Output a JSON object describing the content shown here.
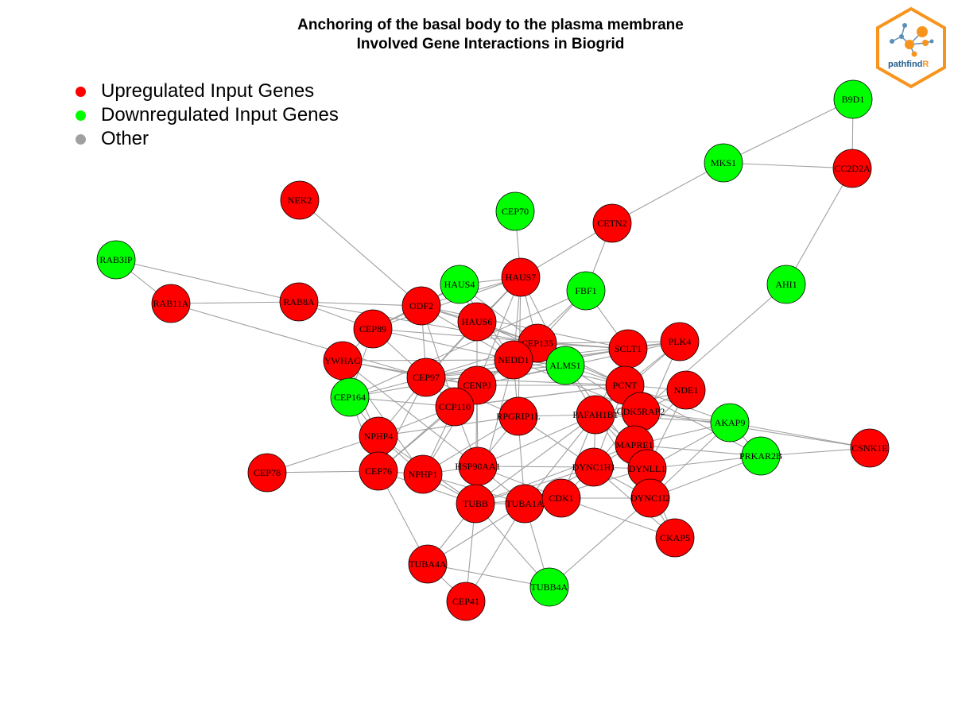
{
  "title": {
    "line1": "Anchoring of the basal body to the plasma membrane",
    "line2": "Involved Gene Interactions in Biogrid"
  },
  "legend": [
    {
      "label": "Upregulated Input Genes",
      "color": "#ff0000"
    },
    {
      "label": "Downregulated Input Genes",
      "color": "#00ff00"
    },
    {
      "label": "Other",
      "color": "#a0a0a0"
    }
  ],
  "logo": {
    "text_main": "pathfind",
    "text_accent": "R",
    "border_color": "#f7941d",
    "accent_color": "#f7941d",
    "text_color": "#1f5c8b"
  },
  "colors": {
    "up": "#ff0000",
    "down": "#00ff00",
    "edge": "#a0a0a0"
  },
  "genes": [
    {
      "id": "B9D1",
      "group": "down"
    },
    {
      "id": "MKS1",
      "group": "down"
    },
    {
      "id": "CC2D2A",
      "group": "up"
    },
    {
      "id": "NEK2",
      "group": "up"
    },
    {
      "id": "CEP70",
      "group": "down"
    },
    {
      "id": "CETN2",
      "group": "up"
    },
    {
      "id": "RAB3IP",
      "group": "down"
    },
    {
      "id": "HAUS7",
      "group": "up"
    },
    {
      "id": "HAUS4",
      "group": "down"
    },
    {
      "id": "FBF1",
      "group": "down"
    },
    {
      "id": "AHI1",
      "group": "down"
    },
    {
      "id": "RAB11A",
      "group": "up"
    },
    {
      "id": "RAB8A",
      "group": "up"
    },
    {
      "id": "ODF2",
      "group": "up"
    },
    {
      "id": "HAUS6",
      "group": "up"
    },
    {
      "id": "CEP89",
      "group": "up"
    },
    {
      "id": "CEP135",
      "group": "up"
    },
    {
      "id": "SCLT1",
      "group": "up"
    },
    {
      "id": "PLK4",
      "group": "up"
    },
    {
      "id": "YWHAG",
      "group": "up"
    },
    {
      "id": "NEDD1",
      "group": "up"
    },
    {
      "id": "ALMS1",
      "group": "down"
    },
    {
      "id": "CEP97",
      "group": "up"
    },
    {
      "id": "CENPJ",
      "group": "up"
    },
    {
      "id": "PCNT",
      "group": "up"
    },
    {
      "id": "NDE1",
      "group": "up"
    },
    {
      "id": "CEP164",
      "group": "down"
    },
    {
      "id": "CCP110",
      "group": "up"
    },
    {
      "id": "CDK5RAP2",
      "group": "up"
    },
    {
      "id": "AKAP9",
      "group": "down"
    },
    {
      "id": "RPGRIP1L",
      "group": "up"
    },
    {
      "id": "PAFAH1B1",
      "group": "up"
    },
    {
      "id": "NPHP4",
      "group": "up"
    },
    {
      "id": "MAPRE1",
      "group": "up"
    },
    {
      "id": "CSNK1E",
      "group": "up"
    },
    {
      "id": "PRKAR2B",
      "group": "down"
    },
    {
      "id": "CEP78",
      "group": "up"
    },
    {
      "id": "CEP76",
      "group": "up"
    },
    {
      "id": "NPHP1",
      "group": "up"
    },
    {
      "id": "HSP90AA1",
      "group": "up"
    },
    {
      "id": "DYNC1H1",
      "group": "up"
    },
    {
      "id": "DYNLL1",
      "group": "up"
    },
    {
      "id": "TUBB",
      "group": "up"
    },
    {
      "id": "TUBA1A",
      "group": "up"
    },
    {
      "id": "CDK1",
      "group": "up"
    },
    {
      "id": "DYNC1I2",
      "group": "up"
    },
    {
      "id": "CKAP5",
      "group": "up"
    },
    {
      "id": "TUBA4A",
      "group": "up"
    },
    {
      "id": "TUBB4A",
      "group": "down"
    },
    {
      "id": "CEP41",
      "group": "up"
    }
  ],
  "interactions": [
    [
      "B9D1",
      "MKS1"
    ],
    [
      "B9D1",
      "CC2D2A"
    ],
    [
      "MKS1",
      "CC2D2A"
    ],
    [
      "MKS1",
      "CETN2"
    ],
    [
      "CC2D2A",
      "AHI1"
    ],
    [
      "AHI1",
      "CDK5RAP2"
    ],
    [
      "NEK2",
      "ODF2"
    ],
    [
      "CEP70",
      "HAUS7"
    ],
    [
      "CETN2",
      "HAUS7"
    ],
    [
      "CETN2",
      "FBF1"
    ],
    [
      "RAB3IP",
      "RAB11A"
    ],
    [
      "RAB3IP",
      "RAB8A"
    ],
    [
      "RAB11A",
      "RAB8A"
    ],
    [
      "RAB11A",
      "CEP97"
    ],
    [
      "RAB8A",
      "ODF2"
    ],
    [
      "RAB8A",
      "CEP89"
    ],
    [
      "RAB8A",
      "CEP135"
    ],
    [
      "HAUS7",
      "HAUS4"
    ],
    [
      "HAUS7",
      "HAUS6"
    ],
    [
      "HAUS7",
      "CEP135"
    ],
    [
      "HAUS7",
      "NEDD1"
    ],
    [
      "HAUS7",
      "ODF2"
    ],
    [
      "HAUS7",
      "CEP97"
    ],
    [
      "HAUS7",
      "CENPJ"
    ],
    [
      "HAUS7",
      "CEP89"
    ],
    [
      "HAUS7",
      "ALMS1"
    ],
    [
      "HAUS7",
      "RPGRIP1L"
    ],
    [
      "HAUS4",
      "HAUS6"
    ],
    [
      "HAUS4",
      "NEDD1"
    ],
    [
      "HAUS4",
      "CEP89"
    ],
    [
      "HAUS4",
      "CEP135"
    ],
    [
      "HAUS6",
      "NEDD1"
    ],
    [
      "HAUS6",
      "CEP135"
    ],
    [
      "HAUS6",
      "ODF2"
    ],
    [
      "HAUS6",
      "CENPJ"
    ],
    [
      "HAUS6",
      "CEP97"
    ],
    [
      "HAUS6",
      "PCNT"
    ],
    [
      "ODF2",
      "CEP89"
    ],
    [
      "ODF2",
      "CEP135"
    ],
    [
      "ODF2",
      "NEDD1"
    ],
    [
      "ODF2",
      "CEP97"
    ],
    [
      "ODF2",
      "CCP110"
    ],
    [
      "ODF2",
      "SCLT1"
    ],
    [
      "ODF2",
      "HAUS4"
    ],
    [
      "CEP89",
      "CEP97"
    ],
    [
      "CEP89",
      "NEDD1"
    ],
    [
      "CEP89",
      "CEP164"
    ],
    [
      "CEP89",
      "YWHAG"
    ],
    [
      "CEP89",
      "SCLT1"
    ],
    [
      "CEP135",
      "NEDD1"
    ],
    [
      "CEP135",
      "ALMS1"
    ],
    [
      "CEP135",
      "SCLT1"
    ],
    [
      "CEP135",
      "PLK4"
    ],
    [
      "CEP135",
      "CENPJ"
    ],
    [
      "CEP135",
      "PCNT"
    ],
    [
      "CEP135",
      "CEP97"
    ],
    [
      "CEP135",
      "FBF1"
    ],
    [
      "FBF1",
      "SCLT1"
    ],
    [
      "FBF1",
      "CEP164"
    ],
    [
      "FBF1",
      "NEDD1"
    ],
    [
      "SCLT1",
      "PCNT"
    ],
    [
      "SCLT1",
      "CEP164"
    ],
    [
      "SCLT1",
      "CEP97"
    ],
    [
      "SCLT1",
      "PAFAH1B1"
    ],
    [
      "PLK4",
      "PCNT"
    ],
    [
      "PLK4",
      "CENPJ"
    ],
    [
      "PLK4",
      "CEP97"
    ],
    [
      "PLK4",
      "PAFAH1B1"
    ],
    [
      "PLK4",
      "MAPRE1"
    ],
    [
      "PLK4",
      "NEDD1"
    ],
    [
      "YWHAG",
      "CEP97"
    ],
    [
      "YWHAG",
      "NEDD1"
    ],
    [
      "YWHAG",
      "CENPJ"
    ],
    [
      "YWHAG",
      "NPHP4"
    ],
    [
      "YWHAG",
      "NPHP1"
    ],
    [
      "YWHAG",
      "HSP90AA1"
    ],
    [
      "NEDD1",
      "CENPJ"
    ],
    [
      "NEDD1",
      "CEP97"
    ],
    [
      "NEDD1",
      "ALMS1"
    ],
    [
      "NEDD1",
      "PCNT"
    ],
    [
      "NEDD1",
      "CCP110"
    ],
    [
      "NEDD1",
      "TUBB"
    ],
    [
      "NEDD1",
      "TUBA1A"
    ],
    [
      "NEDD1",
      "CDK5RAP2"
    ],
    [
      "ALMS1",
      "PCNT"
    ],
    [
      "ALMS1",
      "CENPJ"
    ],
    [
      "ALMS1",
      "CEP97"
    ],
    [
      "ALMS1",
      "CDK5RAP2"
    ],
    [
      "ALMS1",
      "PAFAH1B1"
    ],
    [
      "ALMS1",
      "DYNLL1"
    ],
    [
      "CEP97",
      "CENPJ"
    ],
    [
      "CEP97",
      "CCP110"
    ],
    [
      "CEP97",
      "CEP164"
    ],
    [
      "CEP97",
      "NPHP4"
    ],
    [
      "CEP97",
      "RPGRIP1L"
    ],
    [
      "CEP97",
      "CEP76"
    ],
    [
      "CEP97",
      "PCNT"
    ],
    [
      "CENPJ",
      "CCP110"
    ],
    [
      "CENPJ",
      "PCNT"
    ],
    [
      "CENPJ",
      "NPHP1"
    ],
    [
      "CENPJ",
      "TUBB"
    ],
    [
      "CENPJ",
      "HSP90AA1"
    ],
    [
      "CENPJ",
      "CEP76"
    ],
    [
      "PCNT",
      "CDK5RAP2"
    ],
    [
      "PCNT",
      "NDE1"
    ],
    [
      "PCNT",
      "AKAP9"
    ],
    [
      "PCNT",
      "PAFAH1B1"
    ],
    [
      "PCNT",
      "DYNC1H1"
    ],
    [
      "PCNT",
      "DYNLL1"
    ],
    [
      "PCNT",
      "MAPRE1"
    ],
    [
      "PCNT",
      "CCP110"
    ],
    [
      "PCNT",
      "PRKAR2B"
    ],
    [
      "NDE1",
      "PAFAH1B1"
    ],
    [
      "NDE1",
      "DYNLL1"
    ],
    [
      "NDE1",
      "MAPRE1"
    ],
    [
      "NDE1",
      "CDK5RAP2"
    ],
    [
      "CEP164",
      "CCP110"
    ],
    [
      "CEP164",
      "NPHP4"
    ],
    [
      "CEP164",
      "CEP76"
    ],
    [
      "CCP110",
      "NPHP4"
    ],
    [
      "CCP110",
      "CEP76"
    ],
    [
      "CCP110",
      "HSP90AA1"
    ],
    [
      "CCP110",
      "NPHP1"
    ],
    [
      "CCP110",
      "PCNT"
    ],
    [
      "CDK5RAP2",
      "AKAP9"
    ],
    [
      "CDK5RAP2",
      "MAPRE1"
    ],
    [
      "CDK5RAP2",
      "PAFAH1B1"
    ],
    [
      "CDK5RAP2",
      "CSNK1E"
    ],
    [
      "CDK5RAP2",
      "DYNC1H1"
    ],
    [
      "AKAP9",
      "MAPRE1"
    ],
    [
      "AKAP9",
      "PRKAR2B"
    ],
    [
      "AKAP9",
      "CSNK1E"
    ],
    [
      "AKAP9",
      "PAFAH1B1"
    ],
    [
      "AKAP9",
      "DYNLL1"
    ],
    [
      "AKAP9",
      "DYNC1I2"
    ],
    [
      "RPGRIP1L",
      "NPHP4"
    ],
    [
      "RPGRIP1L",
      "NPHP1"
    ],
    [
      "RPGRIP1L",
      "PAFAH1B1"
    ],
    [
      "RPGRIP1L",
      "DYNC1H1"
    ],
    [
      "RPGRIP1L",
      "HSP90AA1"
    ],
    [
      "PAFAH1B1",
      "MAPRE1"
    ],
    [
      "PAFAH1B1",
      "DYNC1H1"
    ],
    [
      "PAFAH1B1",
      "DYNLL1"
    ],
    [
      "PAFAH1B1",
      "DYNC1I2"
    ],
    [
      "PAFAH1B1",
      "TUBB"
    ],
    [
      "PAFAH1B1",
      "TUBA1A"
    ],
    [
      "PAFAH1B1",
      "CDK1"
    ],
    [
      "PAFAH1B1",
      "HSP90AA1"
    ],
    [
      "NPHP4",
      "NPHP1"
    ],
    [
      "NPHP4",
      "CEP76"
    ],
    [
      "NPHP4",
      "CEP78"
    ],
    [
      "NPHP4",
      "TUBB"
    ],
    [
      "MAPRE1",
      "DYNLL1"
    ],
    [
      "MAPRE1",
      "DYNC1H1"
    ],
    [
      "MAPRE1",
      "PRKAR2B"
    ],
    [
      "MAPRE1",
      "CKAP5"
    ],
    [
      "MAPRE1",
      "TUBB"
    ],
    [
      "PRKAR2B",
      "CSNK1E"
    ],
    [
      "PRKAR2B",
      "DYNC1I2"
    ],
    [
      "PRKAR2B",
      "DYNLL1"
    ],
    [
      "CEP78",
      "CEP76"
    ],
    [
      "CEP76",
      "NPHP1"
    ],
    [
      "CEP76",
      "TUBB"
    ],
    [
      "CEP76",
      "TUBA4A"
    ],
    [
      "NPHP1",
      "TUBB"
    ],
    [
      "NPHP1",
      "TUBA1A"
    ],
    [
      "NPHP1",
      "HSP90AA1"
    ],
    [
      "HSP90AA1",
      "TUBB"
    ],
    [
      "HSP90AA1",
      "TUBA1A"
    ],
    [
      "HSP90AA1",
      "DYNC1H1"
    ],
    [
      "HSP90AA1",
      "CDK1"
    ],
    [
      "DYNC1H1",
      "DYNLL1"
    ],
    [
      "DYNC1H1",
      "DYNC1I2"
    ],
    [
      "DYNC1H1",
      "TUBB"
    ],
    [
      "DYNC1H1",
      "TUBA1A"
    ],
    [
      "DYNC1H1",
      "CDK1"
    ],
    [
      "DYNC1H1",
      "CKAP5"
    ],
    [
      "DYNLL1",
      "DYNC1I2"
    ],
    [
      "DYNLL1",
      "TUBA1A"
    ],
    [
      "TUBB",
      "TUBA1A"
    ],
    [
      "TUBB",
      "TUBA4A"
    ],
    [
      "TUBB",
      "CEP41"
    ],
    [
      "TUBB",
      "TUBB4A"
    ],
    [
      "TUBB",
      "CDK1"
    ],
    [
      "TUBA1A",
      "TUBA4A"
    ],
    [
      "TUBA1A",
      "CDK1"
    ],
    [
      "TUBA1A",
      "TUBB4A"
    ],
    [
      "TUBA1A",
      "CEP41"
    ],
    [
      "CDK1",
      "DYNC1I2"
    ],
    [
      "CDK1",
      "CKAP5"
    ],
    [
      "DYNC1I2",
      "TUBB4A"
    ],
    [
      "DYNC1I2",
      "CKAP5"
    ],
    [
      "TUBA4A",
      "TUBB4A"
    ],
    [
      "TUBA4A",
      "CEP41"
    ]
  ]
}
